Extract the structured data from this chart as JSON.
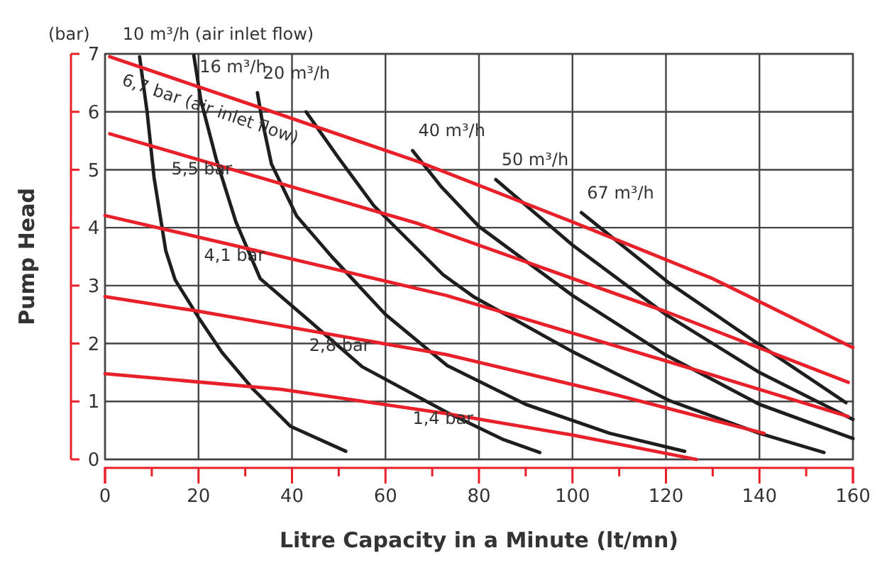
{
  "chart_data": {
    "type": "line",
    "xlabel": "Litre Capacity in a Minute (lt/mn)",
    "ylabel": "Pump Head",
    "annotations": [
      "(bar)"
    ],
    "xlim": [
      0,
      160
    ],
    "ylim": [
      0,
      7
    ],
    "xticks": [
      0,
      {
        "value": 10,
        "label": null
      },
      20,
      {
        "value": 30,
        "label": null
      },
      40,
      {
        "value": 50,
        "label": null
      },
      60,
      {
        "value": 70,
        "label": null
      },
      80,
      {
        "value": 90,
        "label": null
      },
      100,
      {
        "value": 110,
        "label": null
      },
      120,
      {
        "value": 130,
        "label": null
      },
      140,
      {
        "value": 150,
        "label": null
      },
      160
    ],
    "yticks": [
      0,
      1,
      2,
      3,
      4,
      5,
      6,
      7
    ],
    "grid": true,
    "series": [
      {
        "name": "10 m³/h (air inlet flow)",
        "color": "#1e1e1e",
        "x": [
          7.4,
          9,
          10.5,
          13,
          15,
          20,
          25,
          31.7,
          39.7,
          51.5
        ],
        "values": [
          6.95,
          6,
          4.86,
          3.6,
          3.1,
          2.45,
          1.85,
          1.21,
          0.57,
          0.14
        ]
      },
      {
        "name": "16 m³/h",
        "color": "#1e1e1e",
        "x": [
          19,
          20.5,
          23.8,
          28,
          33.2,
          43.6,
          55,
          73.2,
          85,
          93
        ],
        "values": [
          6.97,
          6.2,
          5.18,
          4.1,
          3.12,
          2.4,
          1.6,
          0.81,
          0.35,
          0.12
        ]
      },
      {
        "name": "20 m³/h",
        "color": "#1e1e1e",
        "x": [
          32.6,
          33.5,
          35.6,
          41,
          48.5,
          60,
          73.2,
          90,
          108,
          124
        ],
        "values": [
          6.33,
          5.9,
          5.1,
          4.2,
          3.5,
          2.5,
          1.62,
          0.95,
          0.45,
          0.14
        ]
      },
      {
        "color": "#1e1e1e",
        "x": [
          43,
          50,
          57.5,
          72.3,
          79,
          100,
          120.6,
          140,
          153.8
        ],
        "values": [
          6.0,
          5.2,
          4.38,
          3.19,
          2.8,
          1.86,
          1.02,
          0.45,
          0.12
        ]
      },
      {
        "name": "40 m³/h",
        "color": "#1e1e1e",
        "x": [
          65.8,
          72,
          80,
          100,
          120,
          140,
          160
        ],
        "values": [
          5.33,
          4.7,
          4.02,
          2.83,
          1.8,
          0.95,
          0.36
        ]
      },
      {
        "name": "50 m³/h",
        "color": "#1e1e1e",
        "x": [
          83.6,
          100,
          120,
          140,
          160
        ],
        "values": [
          4.83,
          3.7,
          2.5,
          1.5,
          0.69
        ]
      },
      {
        "name": "67 m³/h",
        "color": "#1e1e1e",
        "x": [
          101.9,
          120.6,
          140,
          158.5
        ],
        "values": [
          4.26,
          3.05,
          1.98,
          0.98
        ]
      },
      {
        "name": "6,7 bar (air inlet flow)",
        "color": "#e8202a",
        "x": [
          1,
          34,
          67,
          100,
          130,
          160
        ],
        "values": [
          6.95,
          6.05,
          5.14,
          4.1,
          3.12,
          1.93
        ]
      },
      {
        "name": "5,5 bar",
        "color": "#e8202a",
        "x": [
          1,
          67,
          120,
          159
        ],
        "values": [
          5.62,
          4.07,
          2.55,
          1.33
        ]
      },
      {
        "name": "4,1 bar",
        "color": "#e8202a",
        "x": [
          0,
          32.6,
          73,
          120,
          159
        ],
        "values": [
          4.21,
          3.6,
          2.83,
          1.7,
          0.74
        ]
      },
      {
        "name": "2,8 bar",
        "color": "#e8202a",
        "x": [
          0,
          19,
          73,
          110,
          141
        ],
        "values": [
          2.81,
          2.57,
          1.81,
          1.1,
          0.45
        ]
      },
      {
        "name": "1,4 bar",
        "color": "#e8202a",
        "x": [
          0,
          37.6,
          73,
          100,
          126.5
        ],
        "values": [
          1.48,
          1.21,
          0.79,
          0.42,
          0
        ]
      }
    ]
  }
}
